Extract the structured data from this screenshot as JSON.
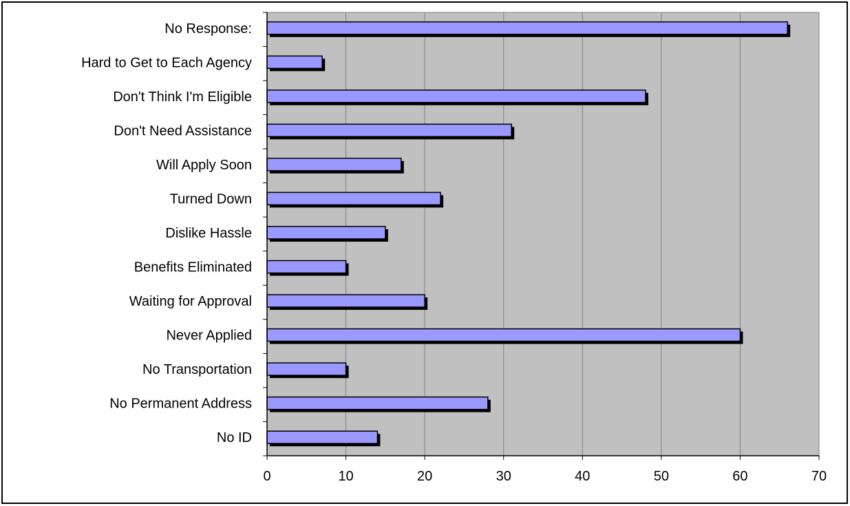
{
  "chart_data": {
    "type": "bar",
    "orientation": "horizontal",
    "categories": [
      "No Response:",
      "Hard to Get to Each Agency",
      "Don't Think I'm Eligible",
      "Don't Need Assistance",
      "Will Apply Soon",
      "Turned Down",
      "Dislike Hassle",
      "Benefits Eliminated",
      "Waiting for Approval",
      "Never Applied",
      "No Transportation",
      "No Permanent Address",
      "No ID"
    ],
    "values": [
      66,
      7,
      48,
      31,
      17,
      22,
      15,
      10,
      20,
      60,
      10,
      28,
      14
    ],
    "title": "",
    "xlabel": "",
    "ylabel": "",
    "xlim": [
      0,
      70
    ],
    "xticks": [
      0,
      10,
      20,
      30,
      40,
      50,
      60,
      70
    ],
    "grid": true,
    "legend": "none",
    "colors": {
      "bar_fill": "#9999ff",
      "bar_shadow": "#000000",
      "plot_background": "#c0c0c0",
      "gridline": "#808080",
      "axis": "#000000"
    }
  }
}
